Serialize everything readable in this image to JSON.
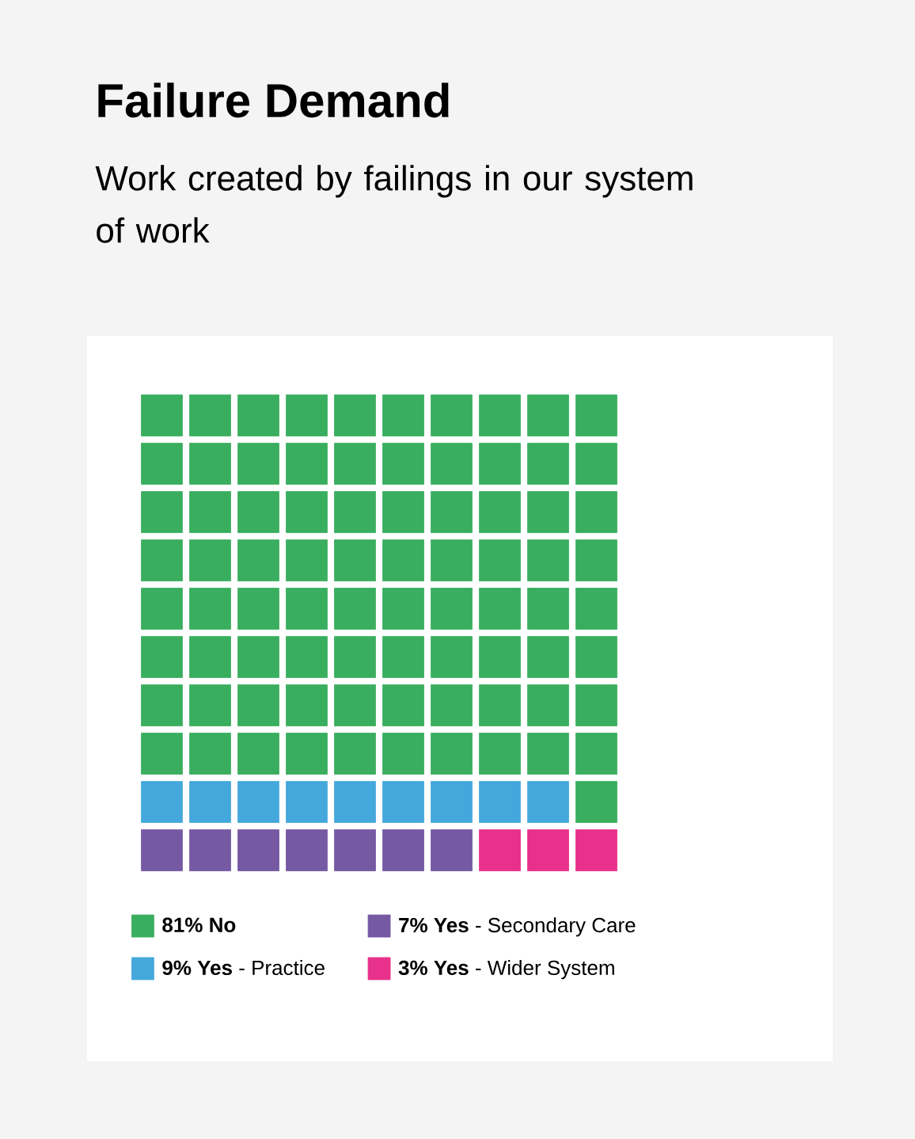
{
  "chart_data": {
    "type": "other",
    "title": "Failure Demand",
    "subtitle": "Work created by failings in our system of work",
    "categories": [
      "**No**",
      "**Yes** - Secondary Care",
      "**Yes** - Practice",
      "**Yes** - Wider System"
    ],
    "values": [
      81,
      7,
      9,
      3
    ],
    "value_labels": [
      "81%",
      "7%",
      "9%",
      "3%"
    ],
    "colors": [
      "#3aae5f",
      "#7559a3",
      "#45a8dc",
      "#e8318b"
    ]
  }
}
